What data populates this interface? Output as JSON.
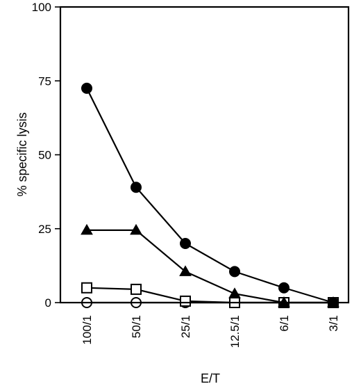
{
  "chart_data": {
    "type": "line",
    "title": "",
    "xlabel": "E/T",
    "ylabel": "% specific lysis",
    "categories": [
      "100/1",
      "50/1",
      "25/1",
      "12.5/1",
      "6/1",
      "3/1"
    ],
    "ylim": [
      0,
      100
    ],
    "yticks": [
      0,
      25,
      50,
      75,
      100
    ],
    "grid": false,
    "legend": "none",
    "series": [
      {
        "marker": "filled-circle",
        "values": [
          72.5,
          39,
          20,
          10.5,
          5,
          0
        ]
      },
      {
        "marker": "filled-triangle",
        "values": [
          24.5,
          24.5,
          10.5,
          3,
          0,
          0
        ]
      },
      {
        "marker": "open-square",
        "values": [
          5,
          4.5,
          0.5,
          0,
          0,
          0
        ]
      },
      {
        "marker": "open-circle",
        "values": [
          0,
          0,
          0,
          0,
          0,
          0
        ]
      }
    ]
  }
}
